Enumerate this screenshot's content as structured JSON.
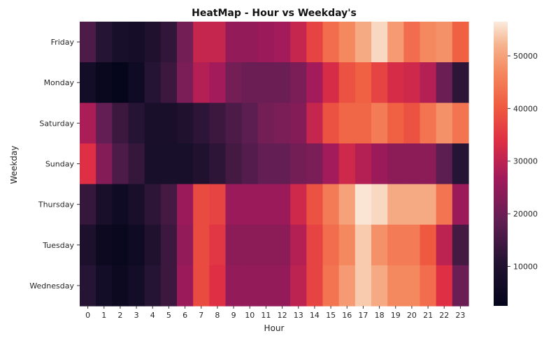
{
  "chart_data": {
    "type": "heatmap",
    "title": "HeatMap - Hour vs Weekday's",
    "xlabel": "Hour",
    "ylabel": "Weekday",
    "x": [
      "0",
      "1",
      "2",
      "3",
      "4",
      "5",
      "6",
      "7",
      "8",
      "9",
      "10",
      "11",
      "12",
      "13",
      "14",
      "15",
      "16",
      "17",
      "18",
      "19",
      "20",
      "21",
      "22",
      "23"
    ],
    "y": [
      "Friday",
      "Monday",
      "Saturday",
      "Sunday",
      "Thursday",
      "Tuesday",
      "Wednesday"
    ],
    "values": [
      [
        16000,
        11000,
        8000,
        7500,
        10000,
        12500,
        21000,
        31000,
        31000,
        25000,
        25000,
        26000,
        27000,
        31000,
        37000,
        43000,
        47000,
        51000,
        55000,
        49000,
        43000,
        47000,
        48000,
        41000
      ],
      [
        7000,
        4000,
        3000,
        6000,
        11000,
        14000,
        22000,
        29000,
        27000,
        21000,
        20000,
        20000,
        20000,
        22000,
        27000,
        33000,
        39000,
        41000,
        37000,
        33000,
        32000,
        29000,
        20000,
        12000
      ],
      [
        28000,
        19000,
        14000,
        11000,
        8500,
        8500,
        10000,
        12000,
        14000,
        16000,
        18000,
        21000,
        22000,
        23000,
        31000,
        39000,
        42000,
        42000,
        45000,
        41000,
        39000,
        44000,
        48000,
        44000
      ],
      [
        34000,
        23000,
        16000,
        13000,
        8000,
        8000,
        8000,
        10000,
        12000,
        15000,
        17000,
        19000,
        19000,
        21000,
        22000,
        27000,
        32000,
        29000,
        26000,
        24000,
        24000,
        24000,
        18000,
        11000
      ],
      [
        13000,
        8500,
        6000,
        8500,
        12000,
        15000,
        26000,
        38000,
        37000,
        26000,
        26000,
        26000,
        26000,
        32000,
        39000,
        45000,
        50000,
        56000,
        55000,
        51000,
        51000,
        51000,
        44000,
        26000
      ],
      [
        9000,
        5000,
        4000,
        6000,
        10000,
        14000,
        25000,
        38000,
        35000,
        24000,
        24000,
        24000,
        24000,
        29000,
        37000,
        43000,
        47000,
        54000,
        48000,
        45000,
        45000,
        40000,
        30000,
        15000
      ],
      [
        11000,
        7000,
        5000,
        7000,
        11000,
        14000,
        26000,
        38000,
        34000,
        25000,
        25000,
        25000,
        25000,
        30000,
        37000,
        44000,
        49000,
        54000,
        51000,
        47000,
        47000,
        43000,
        34000,
        20000
      ]
    ],
    "colorbar": {
      "ticks": [
        10000,
        20000,
        30000,
        40000,
        50000
      ],
      "tick_labels": [
        "10000",
        "20000",
        "30000",
        "40000",
        "50000"
      ],
      "min": 2500,
      "max": 56500
    },
    "colormap": "rocket",
    "grid": false
  }
}
